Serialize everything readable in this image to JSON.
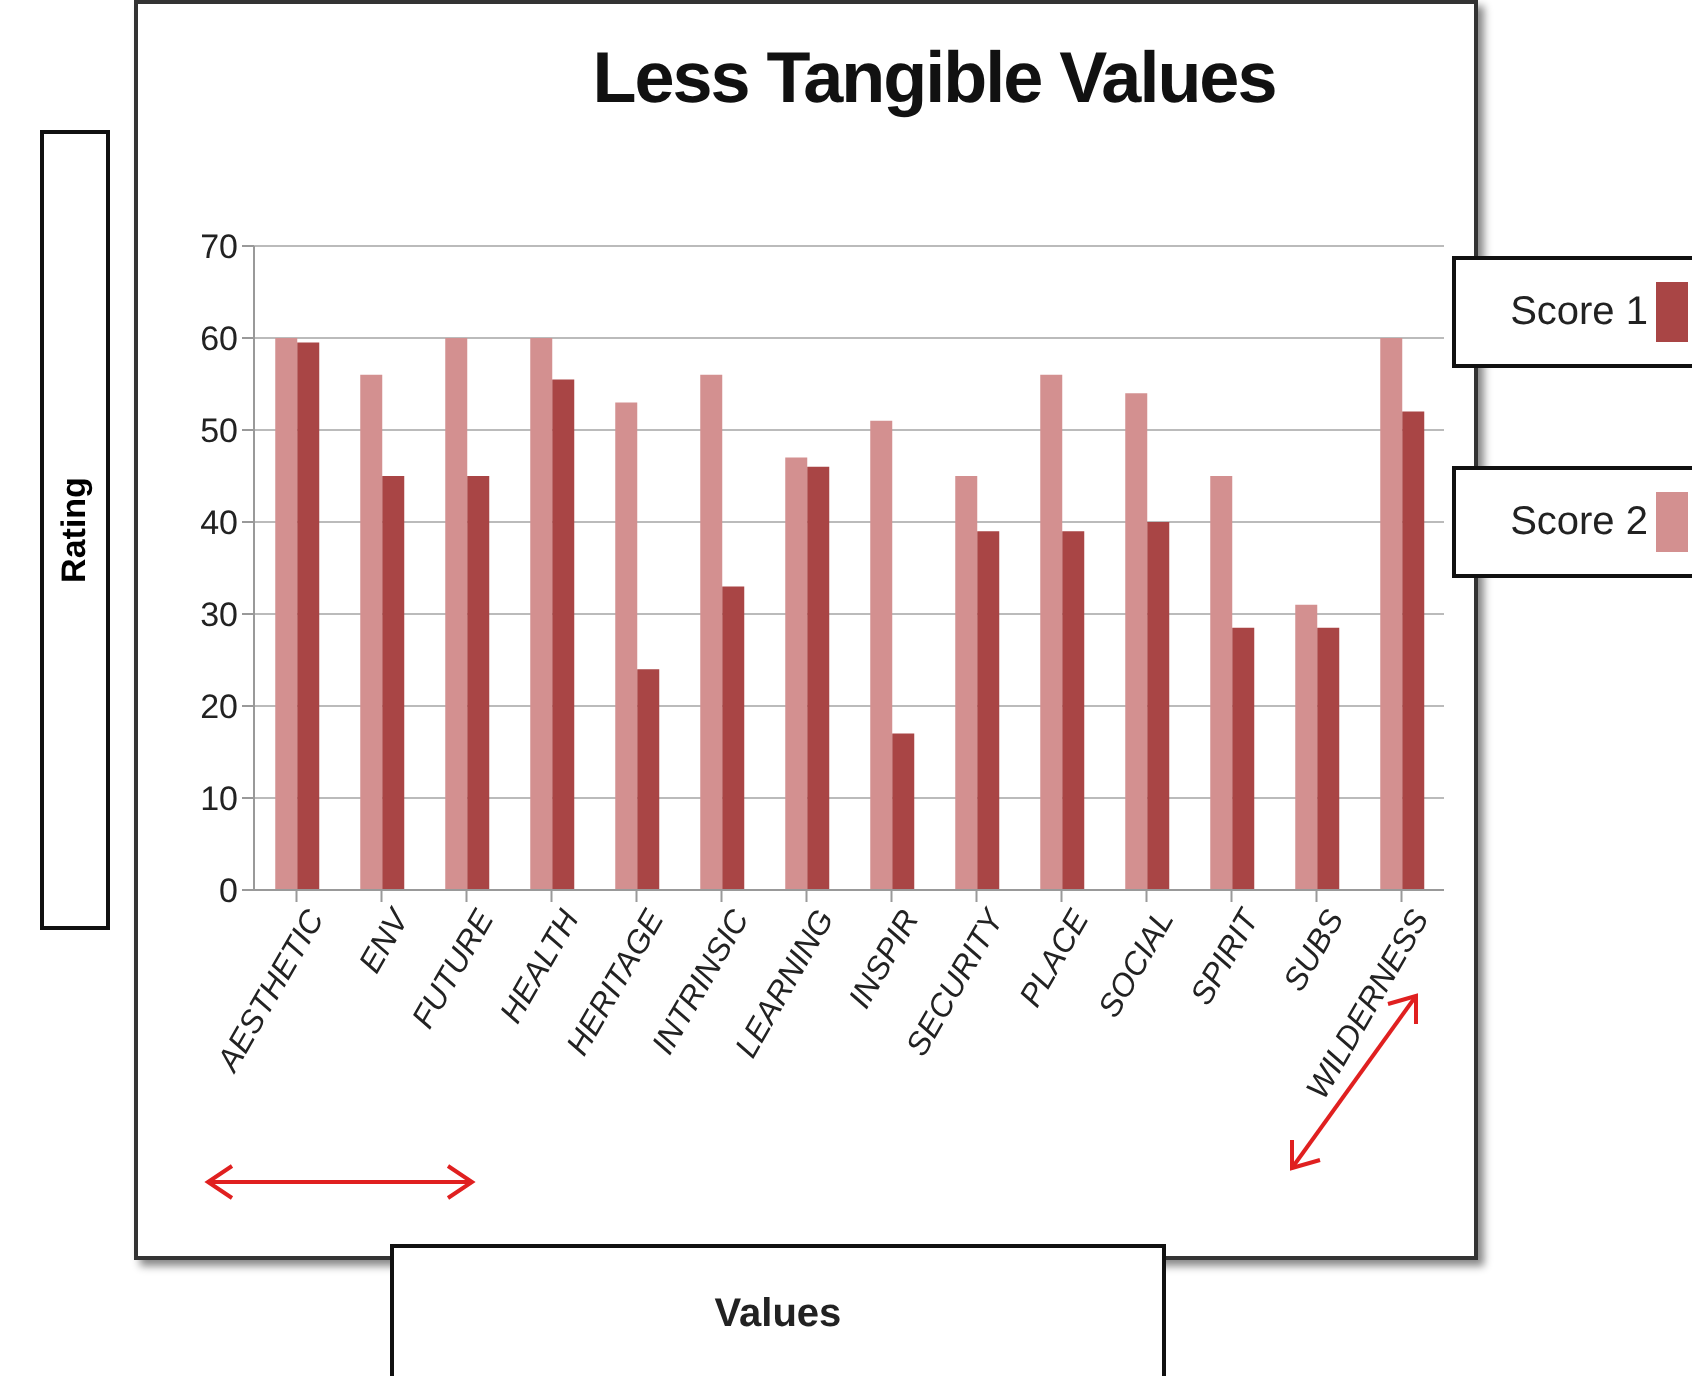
{
  "chart_data": {
    "type": "bar",
    "title": "Less Tangible Values",
    "xlabel": "Values",
    "ylabel": "Rating",
    "categories": [
      "AESTHETIC",
      "ENV",
      "FUTURE",
      "HEALTH",
      "HERITAGE",
      "INTRINSIC",
      "LEARNING",
      "INSPIR",
      "SECURITY",
      "PLACE",
      "SOCIAL",
      "SPIRIT",
      "SUBS",
      "WILDERNESS"
    ],
    "series": [
      {
        "name": "Score 2",
        "color": "#d39090",
        "values": [
          60,
          56,
          60,
          60,
          53,
          56,
          47,
          51,
          45,
          56,
          54,
          45,
          31,
          60
        ]
      },
      {
        "name": "Score 1",
        "color": "#a94545",
        "values": [
          59.5,
          45,
          45,
          55.5,
          24,
          33,
          46,
          17,
          39,
          39,
          40,
          28.5,
          28.5,
          52
        ]
      }
    ],
    "ylim": [
      0,
      70
    ],
    "yticks": [
      0,
      10,
      20,
      30,
      40,
      50,
      60,
      70
    ],
    "grid": "y",
    "legend": "right"
  }
}
